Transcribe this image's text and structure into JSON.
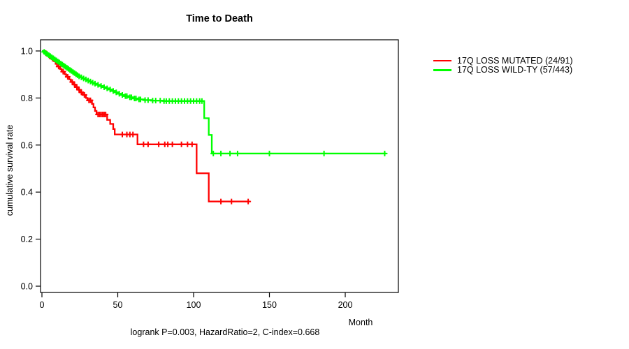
{
  "figure": {
    "title": "Time to Death",
    "caption": "logrank P=0.003, HazardRatio=2, C-index=0.668"
  },
  "chart_data": {
    "type": "line",
    "subtype": "kaplan-meier-step-curve",
    "title": "Time to Death",
    "xlabel": "Month",
    "ylabel": "cumulative survival rate",
    "annotation": "logrank P=0.003, HazardRatio=2, C-index=0.668",
    "grid": false,
    "legend_position": "outside-right",
    "xlim": [
      0,
      235
    ],
    "ylim": [
      0,
      1
    ],
    "x_axis": {
      "label": "Month",
      "tick_values": [
        0,
        50,
        100,
        150,
        200
      ],
      "tick_labels": [
        "0",
        "50",
        "100",
        "150",
        "200"
      ]
    },
    "y_axis": {
      "label": "cumulative survival rate",
      "tick_values": [
        0,
        0.2,
        0.4,
        0.6,
        0.8,
        1.0
      ],
      "tick_labels": [
        "0.0",
        "0.2",
        "0.4",
        "0.6",
        "0.8",
        "1.0"
      ]
    },
    "series": [
      {
        "id": "mutated",
        "name": "17Q LOSS MUTATED",
        "events_total": "24/91",
        "label": "17Q LOSS MUTATED (24/91)",
        "color": "#FF0000",
        "end_month": 137,
        "steps": [
          [
            0,
            1.0
          ],
          [
            2,
            0.989
          ],
          [
            4,
            0.978
          ],
          [
            6,
            0.967
          ],
          [
            8,
            0.956
          ],
          [
            9,
            0.945
          ],
          [
            10,
            0.934
          ],
          [
            12,
            0.923
          ],
          [
            13,
            0.912
          ],
          [
            15,
            0.901
          ],
          [
            16,
            0.89
          ],
          [
            18,
            0.879
          ],
          [
            19,
            0.868
          ],
          [
            21,
            0.857
          ],
          [
            22,
            0.846
          ],
          [
            24,
            0.835
          ],
          [
            25,
            0.824
          ],
          [
            27,
            0.813
          ],
          [
            29,
            0.8
          ],
          [
            30,
            0.79
          ],
          [
            33,
            0.775
          ],
          [
            34,
            0.76
          ],
          [
            35,
            0.745
          ],
          [
            36,
            0.73
          ],
          [
            43,
            0.707
          ],
          [
            45,
            0.69
          ],
          [
            47,
            0.668
          ],
          [
            48,
            0.645
          ],
          [
            63,
            0.603
          ],
          [
            102,
            0.48
          ],
          [
            110,
            0.36
          ]
        ],
        "censor_months": [
          3,
          5,
          7,
          11,
          14,
          17,
          20,
          21.5,
          23,
          24.5,
          26,
          28,
          31,
          32,
          37,
          38,
          39,
          40,
          41,
          42,
          53,
          56,
          58,
          60,
          67,
          70,
          77,
          81,
          83,
          86,
          92,
          96,
          99,
          118,
          125,
          136
        ]
      },
      {
        "id": "wildtype",
        "name": "17Q LOSS WILD-TY",
        "events_total": "57/443",
        "label": "17Q LOSS WILD-TY (57/443)",
        "color": "#00FF00",
        "end_month": 227,
        "steps": [
          [
            0,
            1.0
          ],
          [
            1,
            0.996
          ],
          [
            2,
            0.991
          ],
          [
            3,
            0.987
          ],
          [
            4,
            0.982
          ],
          [
            5,
            0.978
          ],
          [
            6,
            0.973
          ],
          [
            7,
            0.969
          ],
          [
            8,
            0.964
          ],
          [
            9,
            0.96
          ],
          [
            10,
            0.955
          ],
          [
            11,
            0.951
          ],
          [
            12,
            0.946
          ],
          [
            13,
            0.942
          ],
          [
            14,
            0.937
          ],
          [
            15,
            0.933
          ],
          [
            16,
            0.928
          ],
          [
            17,
            0.924
          ],
          [
            18,
            0.919
          ],
          [
            19,
            0.915
          ],
          [
            20,
            0.91
          ],
          [
            21,
            0.906
          ],
          [
            22,
            0.901
          ],
          [
            23,
            0.897
          ],
          [
            24,
            0.892
          ],
          [
            25,
            0.888
          ],
          [
            27,
            0.883
          ],
          [
            28,
            0.879
          ],
          [
            30,
            0.874
          ],
          [
            31,
            0.87
          ],
          [
            33,
            0.865
          ],
          [
            34,
            0.861
          ],
          [
            36,
            0.856
          ],
          [
            38,
            0.851
          ],
          [
            40,
            0.846
          ],
          [
            42,
            0.841
          ],
          [
            44,
            0.836
          ],
          [
            46,
            0.83
          ],
          [
            48,
            0.824
          ],
          [
            50,
            0.818
          ],
          [
            52,
            0.813
          ],
          [
            54,
            0.808
          ],
          [
            57,
            0.803
          ],
          [
            60,
            0.798
          ],
          [
            63,
            0.794
          ],
          [
            67,
            0.791
          ],
          [
            72,
            0.789
          ],
          [
            80,
            0.787
          ],
          [
            107,
            0.714
          ],
          [
            110,
            0.643
          ],
          [
            112,
            0.564
          ]
        ],
        "censor_months": [
          1.5,
          2.5,
          3.5,
          4.5,
          5.5,
          6.5,
          7.5,
          8.5,
          9.5,
          10.5,
          11.5,
          12.5,
          13.5,
          14.5,
          15.5,
          16.5,
          17.5,
          18.5,
          19.5,
          20.5,
          21.5,
          22.5,
          23.5,
          24.5,
          26,
          27.5,
          29,
          30.5,
          32,
          33.5,
          35,
          37,
          39,
          41,
          43,
          45,
          47,
          49,
          51,
          53,
          55,
          56,
          58,
          59,
          61,
          62,
          64,
          65,
          68,
          70,
          73,
          75,
          78,
          80.5,
          82,
          84,
          86,
          88,
          90,
          92,
          94,
          96,
          98,
          100,
          102,
          104,
          105.5,
          113,
          118,
          124,
          129,
          150,
          186,
          226
        ]
      }
    ]
  }
}
